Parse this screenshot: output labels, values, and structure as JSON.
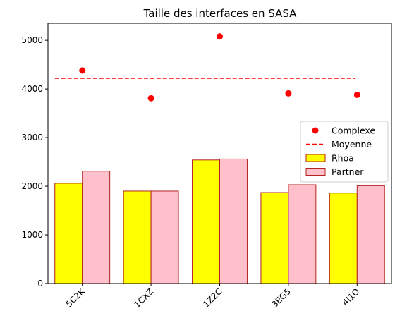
{
  "chart_data": {
    "type": "bar",
    "title": "Taille des interfaces en SASA",
    "xlabel": "",
    "ylabel": "",
    "categories": [
      "5C2K",
      "1CXZ",
      "1Z2C",
      "3EG5",
      "4I1O"
    ],
    "ylim": [
      0,
      5350
    ],
    "yticks": [
      0,
      1000,
      2000,
      3000,
      4000,
      5000
    ],
    "series": [
      {
        "name": "Rhoa",
        "kind": "bar",
        "color": "#ffff00",
        "edge": "#b22222",
        "values": [
          2060,
          1900,
          2540,
          1870,
          1860
        ]
      },
      {
        "name": "Partner",
        "kind": "bar",
        "color": "#ffc0cb",
        "edge": "#b22222",
        "values": [
          2310,
          1900,
          2560,
          2030,
          2010
        ]
      },
      {
        "name": "Complexe",
        "kind": "scatter",
        "color": "#ff0000",
        "values": [
          4380,
          3810,
          5080,
          3910,
          3880
        ]
      },
      {
        "name": "Moyenne",
        "kind": "hline",
        "color": "#ff0000",
        "value": 4220
      }
    ],
    "legend_order": [
      "Complexe",
      "Moyenne",
      "Rhoa",
      "Partner"
    ],
    "legend_position": "center-right",
    "grid": false
  }
}
